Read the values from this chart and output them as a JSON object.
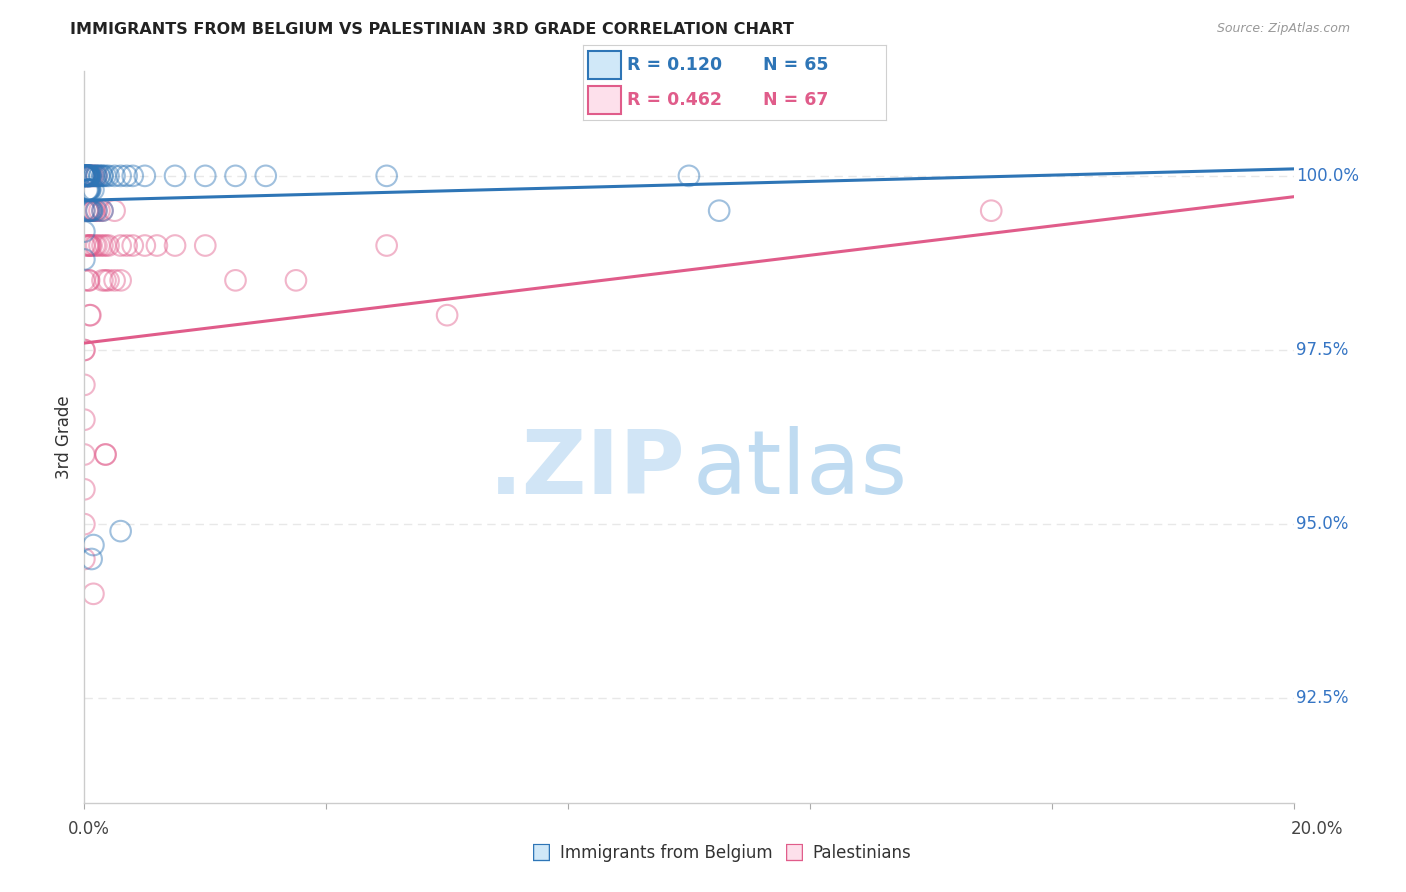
{
  "title": "IMMIGRANTS FROM BELGIUM VS PALESTINIAN 3RD GRADE CORRELATION CHART",
  "source": "Source: ZipAtlas.com",
  "ylabel": "3rd Grade",
  "ytick_labels": [
    "92.5%",
    "95.0%",
    "97.5%",
    "100.0%"
  ],
  "ytick_values": [
    92.5,
    95.0,
    97.5,
    100.0
  ],
  "xmin": 0.0,
  "xmax": 20.0,
  "ymin": 91.0,
  "ymax": 101.5,
  "legend_blue_r": "R = 0.120",
  "legend_blue_n": "N = 65",
  "legend_pink_r": "R = 0.462",
  "legend_pink_n": "N = 67",
  "blue_scatter_x": [
    0.0,
    0.0,
    0.0,
    0.0,
    0.0,
    0.0,
    0.0,
    0.0,
    0.0,
    0.0,
    0.03,
    0.03,
    0.04,
    0.04,
    0.05,
    0.05,
    0.05,
    0.06,
    0.06,
    0.06,
    0.07,
    0.07,
    0.07,
    0.07,
    0.08,
    0.08,
    0.08,
    0.08,
    0.09,
    0.09,
    0.1,
    0.1,
    0.1,
    0.1,
    0.12,
    0.12,
    0.13,
    0.15,
    0.15,
    0.17,
    0.2,
    0.2,
    0.25,
    0.3,
    0.3,
    0.35,
    0.4,
    0.5,
    0.6,
    0.7,
    0.8,
    1.0,
    1.5,
    2.0,
    2.5,
    3.0,
    5.0,
    0.15,
    10.0,
    10.5,
    0.6,
    0.12,
    0.2,
    0.3,
    0.25
  ],
  "blue_scatter_y": [
    100.0,
    100.0,
    100.0,
    100.0,
    100.0,
    100.0,
    100.0,
    99.5,
    99.2,
    98.8,
    100.0,
    100.0,
    100.0,
    100.0,
    100.0,
    100.0,
    99.8,
    100.0,
    99.8,
    99.5,
    100.0,
    100.0,
    100.0,
    99.8,
    100.0,
    100.0,
    99.8,
    99.5,
    100.0,
    99.8,
    100.0,
    100.0,
    99.8,
    99.5,
    100.0,
    99.5,
    99.5,
    100.0,
    99.8,
    100.0,
    100.0,
    99.5,
    100.0,
    100.0,
    99.5,
    100.0,
    100.0,
    100.0,
    100.0,
    100.0,
    100.0,
    100.0,
    100.0,
    100.0,
    100.0,
    100.0,
    100.0,
    94.7,
    100.0,
    99.5,
    94.9,
    94.5,
    100.0,
    100.0,
    100.0
  ],
  "pink_scatter_x": [
    0.0,
    0.0,
    0.0,
    0.0,
    0.0,
    0.0,
    0.0,
    0.03,
    0.04,
    0.05,
    0.05,
    0.06,
    0.06,
    0.07,
    0.07,
    0.08,
    0.08,
    0.09,
    0.09,
    0.1,
    0.1,
    0.1,
    0.1,
    0.12,
    0.12,
    0.13,
    0.15,
    0.15,
    0.17,
    0.17,
    0.2,
    0.2,
    0.2,
    0.25,
    0.25,
    0.3,
    0.3,
    0.3,
    0.35,
    0.35,
    0.4,
    0.4,
    0.5,
    0.5,
    0.6,
    0.6,
    0.7,
    0.8,
    1.0,
    1.2,
    1.5,
    2.0,
    2.5,
    3.5,
    5.0,
    6.0,
    0.15,
    0.35,
    0.35,
    15.0,
    0.0,
    0.0,
    0.0,
    0.0,
    0.0,
    0.0,
    0.0
  ],
  "pink_scatter_y": [
    100.0,
    100.0,
    100.0,
    99.5,
    99.0,
    98.5,
    97.5,
    100.0,
    100.0,
    100.0,
    99.5,
    99.5,
    99.0,
    99.0,
    98.5,
    99.5,
    98.5,
    99.0,
    98.0,
    100.0,
    99.5,
    99.0,
    98.0,
    100.0,
    99.0,
    99.5,
    100.0,
    99.5,
    99.5,
    99.0,
    100.0,
    99.5,
    99.0,
    99.5,
    99.0,
    99.5,
    99.0,
    98.5,
    99.0,
    98.5,
    99.0,
    98.5,
    99.5,
    98.5,
    99.0,
    98.5,
    99.0,
    99.0,
    99.0,
    99.0,
    99.0,
    99.0,
    98.5,
    98.5,
    99.0,
    98.0,
    94.0,
    96.0,
    96.0,
    99.5,
    97.5,
    97.0,
    96.5,
    96.0,
    95.5,
    95.0,
    94.5
  ],
  "blue_line_x0": 0.0,
  "blue_line_x1": 20.0,
  "blue_line_y0": 99.65,
  "blue_line_y1": 100.1,
  "pink_line_x0": 0.0,
  "pink_line_x1": 20.0,
  "pink_line_y0": 97.6,
  "pink_line_y1": 99.7,
  "blue_line_color": "#2e75b6",
  "pink_line_color": "#e05c8a",
  "watermark_zip_color": "#cce3f5",
  "watermark_atlas_color": "#b8d8f0",
  "background_color": "#ffffff",
  "grid_color": "#e8e8e8",
  "right_tick_color": "#3575c4",
  "bottom_label_color": "#444444",
  "title_color": "#222222",
  "source_color": "#999999",
  "legend_blue_fill": "#d0e8f8",
  "legend_pink_fill": "#fde0eb"
}
